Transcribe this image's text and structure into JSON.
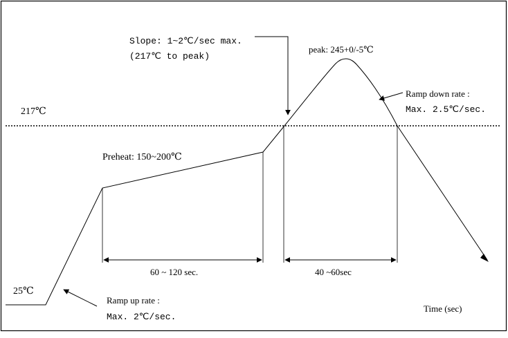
{
  "labels": {
    "temp_217": "217℃",
    "temp_25": "25℃",
    "slope_line1": "Slope: 1~2℃/sec max.",
    "slope_line2": "(217℃ to peak)",
    "peak": "peak: 245+0/-5℃",
    "ramp_down_line1": "Ramp down rate :",
    "ramp_down_line2": "Max. 2.5℃/sec.",
    "preheat": "Preheat: 150~200℃",
    "interval_preheat": "60 ~ 120 sec.",
    "interval_above": "40 ~60sec",
    "ramp_up_line1": "Ramp up rate :",
    "ramp_up_line2": "Max. 2℃/sec.",
    "time_axis": "Time (sec)"
  }
}
